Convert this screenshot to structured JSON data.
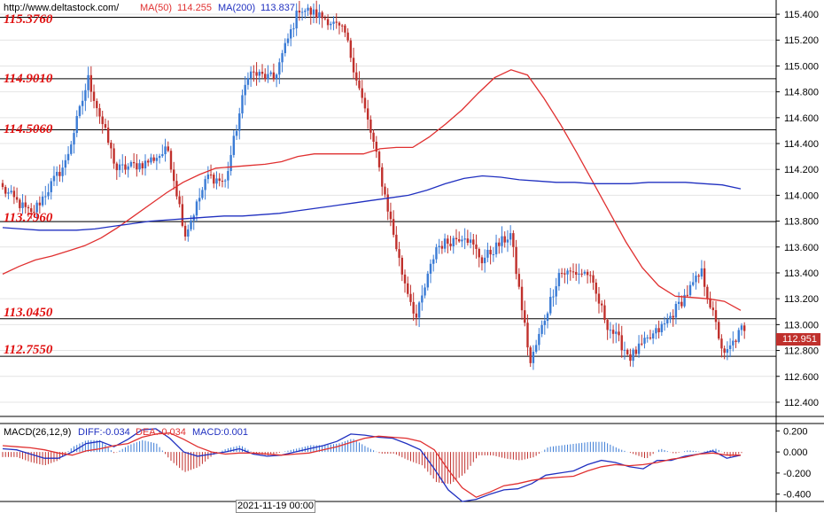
{
  "header": {
    "url": "http://www.deltastock.com/",
    "ma50_label": "MA(50)",
    "ma50_value": "114.255",
    "ma200_label": "MA(200)",
    "ma200_value": "113.837"
  },
  "macd_header": {
    "title": "MACD(26,12,9)",
    "diff": "DIFF:-0.034",
    "dea": "DEA:-0.034",
    "macd": "MACD:0.001"
  },
  "levels": [
    "115.3760",
    "114.9010",
    "114.5060",
    "113.7960",
    "113.0450",
    "112.7550"
  ],
  "current_price": "112.951",
  "time_label": "2021-11-19 00:00",
  "colors": {
    "up": "#3a7bd5",
    "down": "#c0302c",
    "ma50": "#e03030",
    "ma200": "#2030c0",
    "level_text": "#e01010"
  },
  "chart_data": [
    {
      "type": "candlestick",
      "title": "",
      "y_ticks": [
        "115.400",
        "115.200",
        "115.000",
        "114.800",
        "114.600",
        "114.400",
        "114.200",
        "114.000",
        "113.800",
        "113.600",
        "113.400",
        "113.200",
        "113.000",
        "112.800",
        "112.600",
        "112.400"
      ],
      "ylim": [
        112.29,
        115.51
      ],
      "horizontal_levels": [
        115.376,
        114.901,
        114.506,
        113.796,
        113.045,
        112.755
      ],
      "last_price": 112.951,
      "series": [
        {
          "name": "MA(50)",
          "values": [
            113.39,
            113.45,
            113.5,
            113.53,
            113.57,
            113.61,
            113.67,
            113.75,
            113.84,
            113.93,
            114.02,
            114.1,
            114.16,
            114.21,
            114.22,
            114.23,
            114.24,
            114.26,
            114.3,
            114.32,
            114.32,
            114.32,
            114.32,
            114.36,
            114.37,
            114.37,
            114.45,
            114.55,
            114.66,
            114.79,
            114.91,
            114.97,
            114.93,
            114.75,
            114.55,
            114.33,
            114.1,
            113.87,
            113.64,
            113.44,
            113.3,
            113.22,
            113.21,
            113.2,
            113.18,
            113.11
          ]
        },
        {
          "name": "MA(200)",
          "values": [
            113.75,
            113.74,
            113.73,
            113.73,
            113.73,
            113.74,
            113.76,
            113.78,
            113.8,
            113.81,
            113.82,
            113.83,
            113.84,
            113.84,
            113.85,
            113.86,
            113.88,
            113.9,
            113.92,
            113.94,
            113.96,
            113.98,
            114.0,
            114.04,
            114.09,
            114.13,
            114.15,
            114.14,
            114.12,
            114.11,
            114.1,
            114.1,
            114.09,
            114.09,
            114.09,
            114.1,
            114.1,
            114.1,
            114.09,
            114.08,
            114.05
          ]
        }
      ]
    },
    {
      "type": "macd",
      "title": "MACD(26,12,9)",
      "y_ticks": [
        "0.200",
        "0.000",
        "-0.200",
        "-0.400"
      ],
      "ylim": [
        -0.47,
        0.27
      ],
      "series": [
        {
          "name": "DIFF",
          "values": [
            0.03,
            0.02,
            -0.02,
            -0.06,
            -0.06,
            0.0,
            0.08,
            0.1,
            0.05,
            0.12,
            0.21,
            0.22,
            0.13,
            0.0,
            -0.04,
            -0.02,
            0.0,
            0.03,
            -0.02,
            -0.04,
            -0.03,
            0.0,
            0.03,
            0.06,
            0.1,
            0.17,
            0.16,
            0.14,
            0.13,
            0.08,
            0.02,
            -0.16,
            -0.36,
            -0.47,
            -0.45,
            -0.4,
            -0.36,
            -0.35,
            -0.3,
            -0.22,
            -0.2,
            -0.18,
            -0.12,
            -0.08,
            -0.1,
            -0.14,
            -0.16,
            -0.08,
            -0.08,
            -0.04,
            -0.02,
            0.01,
            -0.06,
            -0.03
          ]
        },
        {
          "name": "DEA",
          "values": [
            0.06,
            0.05,
            0.04,
            0.02,
            -0.01,
            -0.03,
            0.01,
            0.03,
            0.06,
            0.08,
            0.14,
            0.17,
            0.18,
            0.12,
            0.05,
            0.0,
            -0.02,
            -0.01,
            -0.01,
            -0.02,
            -0.03,
            -0.02,
            -0.01,
            0.02,
            0.05,
            0.09,
            0.13,
            0.15,
            0.14,
            0.13,
            0.1,
            0.02,
            -0.17,
            -0.34,
            -0.43,
            -0.38,
            -0.32,
            -0.3,
            -0.27,
            -0.25,
            -0.24,
            -0.23,
            -0.18,
            -0.14,
            -0.12,
            -0.13,
            -0.12,
            -0.1,
            -0.07,
            -0.05,
            -0.02,
            -0.01,
            -0.03,
            -0.03
          ]
        }
      ]
    }
  ]
}
